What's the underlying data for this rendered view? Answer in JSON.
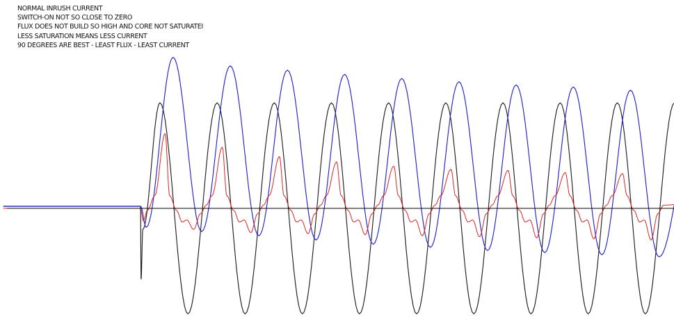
{
  "annotations": [
    "NORMAL INRUSH CURRENT",
    "SWITCH-ON NOT SO CLOSE TO ZERO",
    "FLUX DOES NOT BUILD SO HIGH AND CORE NOT SATURATEI",
    "LESS SATURATION MEANS LESS CURRENT",
    "90 DEGREES ARE BEST - LEAST FLUX - LEAST CURRENT"
  ],
  "colors": {
    "background": "#ffffff",
    "axis": "#000000",
    "text": "#111111"
  },
  "chart_data": {
    "type": "line",
    "title": "",
    "xlabel": "",
    "ylabel": "",
    "grid": false,
    "legend": "none",
    "zero_line": true,
    "x_unit": "cycles after switch-on",
    "x_range": [
      -2.4,
      9.65
    ],
    "ylim": [
      -1.25,
      1.65
    ],
    "switch_on_x": 0,
    "series": [
      {
        "color": "#1f1f1f",
        "pre_switch_level": 0.02,
        "cycles": [
          {
            "max_x": 0.34,
            "max_y": 1.0,
            "min_x": 0.83,
            "min_y": -1.0
          },
          {
            "max_x": 1.34,
            "max_y": 1.0,
            "min_x": 1.83,
            "min_y": -1.0
          },
          {
            "max_x": 2.34,
            "max_y": 1.0,
            "min_x": 2.83,
            "min_y": -1.0
          },
          {
            "max_x": 3.34,
            "max_y": 1.0,
            "min_x": 3.83,
            "min_y": -1.0
          },
          {
            "max_x": 4.34,
            "max_y": 1.0,
            "min_x": 4.83,
            "min_y": -1.0
          },
          {
            "max_x": 5.34,
            "max_y": 1.0,
            "min_x": 5.83,
            "min_y": -1.0
          },
          {
            "max_x": 6.34,
            "max_y": 1.0,
            "min_x": 6.83,
            "min_y": -1.0
          },
          {
            "max_x": 7.34,
            "max_y": 1.0,
            "min_x": 7.83,
            "min_y": -1.0
          },
          {
            "max_x": 8.34,
            "max_y": 1.0,
            "min_x": 8.83,
            "min_y": -1.0
          },
          {
            "max_x": 9.34,
            "max_y": 1.0
          }
        ],
        "end_y": 0.62
      },
      {
        "color": "#2222cc",
        "pre_switch_level": 0.02,
        "cycles": [
          {
            "min_x": 0.1,
            "min_y": -0.18,
            "max_x": 0.57,
            "max_y": 1.43
          },
          {
            "min_x": 1.07,
            "min_y": -0.22,
            "max_x": 1.57,
            "max_y": 1.35
          },
          {
            "min_x": 2.07,
            "min_y": -0.26,
            "max_x": 2.57,
            "max_y": 1.31
          },
          {
            "min_x": 3.07,
            "min_y": -0.3,
            "max_x": 3.57,
            "max_y": 1.27
          },
          {
            "min_x": 4.07,
            "min_y": -0.34,
            "max_x": 4.57,
            "max_y": 1.23
          },
          {
            "min_x": 5.07,
            "min_y": -0.37,
            "max_x": 5.57,
            "max_y": 1.2
          },
          {
            "min_x": 6.07,
            "min_y": -0.4,
            "max_x": 6.57,
            "max_y": 1.17
          },
          {
            "min_x": 7.07,
            "min_y": -0.42,
            "max_x": 7.57,
            "max_y": 1.15
          },
          {
            "min_x": 8.07,
            "min_y": -0.44,
            "max_x": 8.57,
            "max_y": 1.12
          },
          {
            "min_x": 9.07,
            "min_y": -0.46
          }
        ],
        "end_y": 0.68
      },
      {
        "color": "#dd2222",
        "pre_switch_level": 0.0,
        "cycles": [
          {
            "rise_x": 0.25,
            "peak_x": 0.43,
            "peak_y": 0.71,
            "trough_x": 0.93,
            "trough_y": -0.2
          },
          {
            "rise_x": 1.25,
            "peak_x": 1.43,
            "peak_y": 0.58,
            "trough_x": 1.93,
            "trough_y": -0.23
          },
          {
            "rise_x": 2.25,
            "peak_x": 2.43,
            "peak_y": 0.49,
            "trough_x": 2.93,
            "trough_y": -0.24
          },
          {
            "rise_x": 3.25,
            "peak_x": 3.43,
            "peak_y": 0.44,
            "trough_x": 3.93,
            "trough_y": -0.25
          },
          {
            "rise_x": 4.25,
            "peak_x": 4.43,
            "peak_y": 0.4,
            "trough_x": 4.93,
            "trough_y": -0.26
          },
          {
            "rise_x": 5.25,
            "peak_x": 5.43,
            "peak_y": 0.37,
            "trough_x": 5.93,
            "trough_y": -0.27
          },
          {
            "rise_x": 6.25,
            "peak_x": 6.43,
            "peak_y": 0.36,
            "trough_x": 6.93,
            "trough_y": -0.28
          },
          {
            "rise_x": 7.25,
            "peak_x": 7.43,
            "peak_y": 0.34,
            "trough_x": 7.93,
            "trough_y": -0.29
          },
          {
            "rise_x": 8.25,
            "peak_x": 8.43,
            "peak_y": 0.33,
            "trough_x": 8.93,
            "trough_y": -0.3
          }
        ],
        "end_y": 0.05
      }
    ]
  }
}
